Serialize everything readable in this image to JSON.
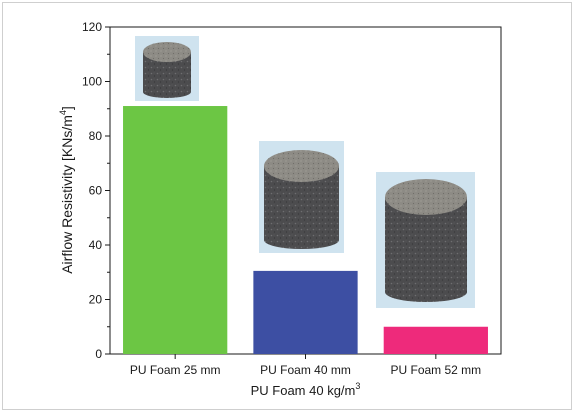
{
  "chart_data": {
    "type": "bar",
    "categories": [
      "PU Foam 25 mm",
      "PU Foam 40 mm",
      "PU Foam 52 mm"
    ],
    "values": [
      91,
      30.5,
      10
    ],
    "colors": [
      "#6cc644",
      "#3d4fa3",
      "#ee2a7b"
    ],
    "title": "",
    "xlabel": "PU Foam 40 kg/m",
    "xlabel_sup": "3",
    "ylabel": "Airflow Resistivity [KNs/m",
    "ylabel_sup": "4",
    "ylabel_end": "]",
    "ylim": [
      0,
      120
    ],
    "yticks": [
      0,
      20,
      40,
      60,
      80,
      100,
      120
    ],
    "ytick_labels": [
      "0",
      "20",
      "40",
      "60",
      "80",
      "100",
      "120"
    ],
    "grid": false,
    "legend": "none"
  },
  "colors": {
    "foam": "#4a4a4a",
    "foam_top": "#8c8a84",
    "photo_bg": "#cfe3ef"
  }
}
